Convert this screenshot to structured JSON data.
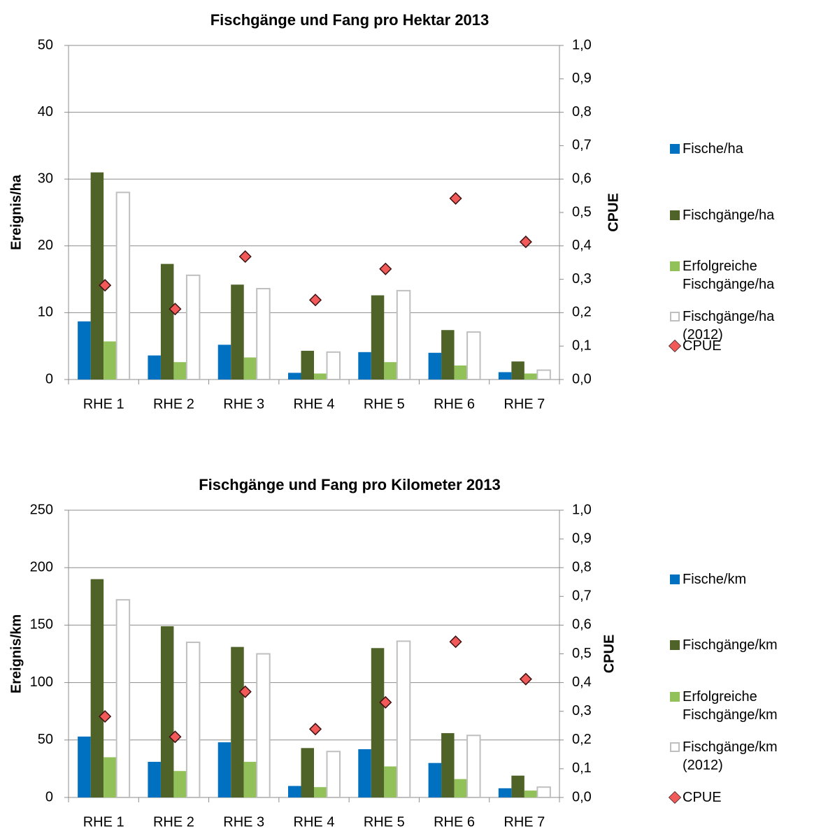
{
  "chart_data": [
    {
      "type": "bar",
      "title": "Fischgänge und Fang pro Hektar 2013",
      "ylabel": "Ereignis/ha",
      "y2label": "CPUE",
      "categories": [
        "RHE 1",
        "RHE 2",
        "RHE 3",
        "RHE 4",
        "RHE 5",
        "RHE 6",
        "RHE 7"
      ],
      "series": [
        {
          "name": "Fische/ha",
          "color": "#0070c0",
          "values": [
            8.7,
            3.6,
            5.2,
            1.0,
            4.1,
            4.0,
            1.1
          ]
        },
        {
          "name": "Fischgänge/ha",
          "color": "#4f6228",
          "values": [
            31.0,
            17.3,
            14.2,
            4.3,
            12.6,
            7.4,
            2.7
          ]
        },
        {
          "name": "Erfolgreiche Fischgänge/ha",
          "color": "#92c15a",
          "values": [
            5.7,
            2.6,
            3.3,
            0.9,
            2.6,
            2.1,
            0.9
          ]
        },
        {
          "name": "Fischgänge/ha (2012)",
          "color": "#ffffff",
          "edge_color": "#bfbfbf",
          "values": [
            28.0,
            15.6,
            13.6,
            4.1,
            13.3,
            7.1,
            1.4
          ]
        },
        {
          "name": "CPUE",
          "type": "scatter",
          "marker": "diamond",
          "axis": "y2",
          "color": "#f25a5a",
          "edge_color": "#3a1010",
          "values": [
            0.282,
            0.211,
            0.368,
            0.238,
            0.331,
            0.542,
            0.412
          ]
        }
      ],
      "ylim": [
        0,
        50
      ],
      "yticks": [
        0,
        10,
        20,
        30,
        40,
        50
      ],
      "y2lim": [
        0,
        1
      ],
      "y2ticks": [
        {
          "value": 0,
          "label": "0,0"
        },
        {
          "value": 0.1,
          "label": "0,1"
        },
        {
          "value": 0.2,
          "label": "0,2"
        },
        {
          "value": 0.3,
          "label": "0,3"
        },
        {
          "value": 0.4,
          "label": "0,4"
        },
        {
          "value": 0.5,
          "label": "0,5"
        },
        {
          "value": 0.6,
          "label": "0,6"
        },
        {
          "value": 0.7,
          "label": "0,7"
        },
        {
          "value": 0.8,
          "label": "0,8"
        },
        {
          "value": 0.9,
          "label": "0,9"
        },
        {
          "value": 1,
          "label": "1,0"
        }
      ],
      "grid": true,
      "legend": "right"
    },
    {
      "type": "bar",
      "title": "Fischgänge und Fang pro Kilometer 2013",
      "ylabel": "Ereignis/km",
      "y2label": "CPUE",
      "categories": [
        "RHE 1",
        "RHE 2",
        "RHE 3",
        "RHE 4",
        "RHE 5",
        "RHE 6",
        "RHE 7"
      ],
      "series": [
        {
          "name": "Fische/km",
          "color": "#0070c0",
          "values": [
            53,
            31,
            48,
            10,
            42,
            30,
            8
          ]
        },
        {
          "name": "Fischgänge/km",
          "color": "#4f6228",
          "values": [
            190,
            149,
            131,
            43,
            130,
            56,
            19
          ]
        },
        {
          "name": "Erfolgreiche Fischgänge/km",
          "color": "#92c15a",
          "values": [
            35,
            23,
            31,
            9,
            27,
            16,
            6
          ]
        },
        {
          "name": "Fischgänge/km (2012)",
          "color": "#ffffff",
          "edge_color": "#bfbfbf",
          "values": [
            172,
            135,
            125,
            40,
            136,
            54,
            9
          ]
        },
        {
          "name": "CPUE",
          "type": "scatter",
          "marker": "diamond",
          "axis": "y2",
          "color": "#f25a5a",
          "edge_color": "#3a1010",
          "values": [
            0.282,
            0.211,
            0.368,
            0.238,
            0.331,
            0.542,
            0.412
          ]
        }
      ],
      "ylim": [
        0,
        250
      ],
      "yticks": [
        0,
        50,
        100,
        150,
        200,
        250
      ],
      "y2lim": [
        0,
        1
      ],
      "y2ticks": [
        {
          "value": 0,
          "label": "0,0"
        },
        {
          "value": 0.1,
          "label": "0,1"
        },
        {
          "value": 0.2,
          "label": "0,2"
        },
        {
          "value": 0.3,
          "label": "0,3"
        },
        {
          "value": 0.4,
          "label": "0,4"
        },
        {
          "value": 0.5,
          "label": "0,5"
        },
        {
          "value": 0.6,
          "label": "0,6"
        },
        {
          "value": 0.7,
          "label": "0,7"
        },
        {
          "value": 0.8,
          "label": "0,8"
        },
        {
          "value": 0.9,
          "label": "0,9"
        },
        {
          "value": 1,
          "label": "1,0"
        }
      ],
      "grid": true,
      "legend": "right"
    }
  ]
}
